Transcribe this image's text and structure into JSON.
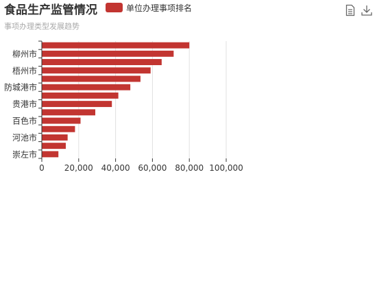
{
  "chart_data": {
    "type": "bar",
    "orientation": "horizontal",
    "title": "食品生产监管情况",
    "subtitle": "事项办理类型发展趋势",
    "legend": [
      "单位办理事项排名"
    ],
    "legend_placement": "top",
    "series": [
      {
        "name": "单位办理事项排名",
        "color": "#c23531",
        "values": [
          9000,
          13000,
          14000,
          18000,
          21000,
          29000,
          38000,
          41500,
          48000,
          53500,
          59000,
          65000,
          71500,
          80000
        ]
      }
    ],
    "category_labels": [
      "崇左市",
      "",
      "河池市",
      "",
      "百色市",
      "",
      "贵港市",
      "",
      "防城港市",
      "",
      "梧州市",
      "",
      "柳州市",
      ""
    ],
    "x_ticks": [
      "0",
      "20,000",
      "40,000",
      "60,000",
      "80,000",
      "100,000"
    ],
    "xlim": [
      0,
      100000
    ],
    "grid": "vertical"
  },
  "toolbox": {
    "icons": [
      "data-view-icon",
      "save-image-icon"
    ]
  }
}
